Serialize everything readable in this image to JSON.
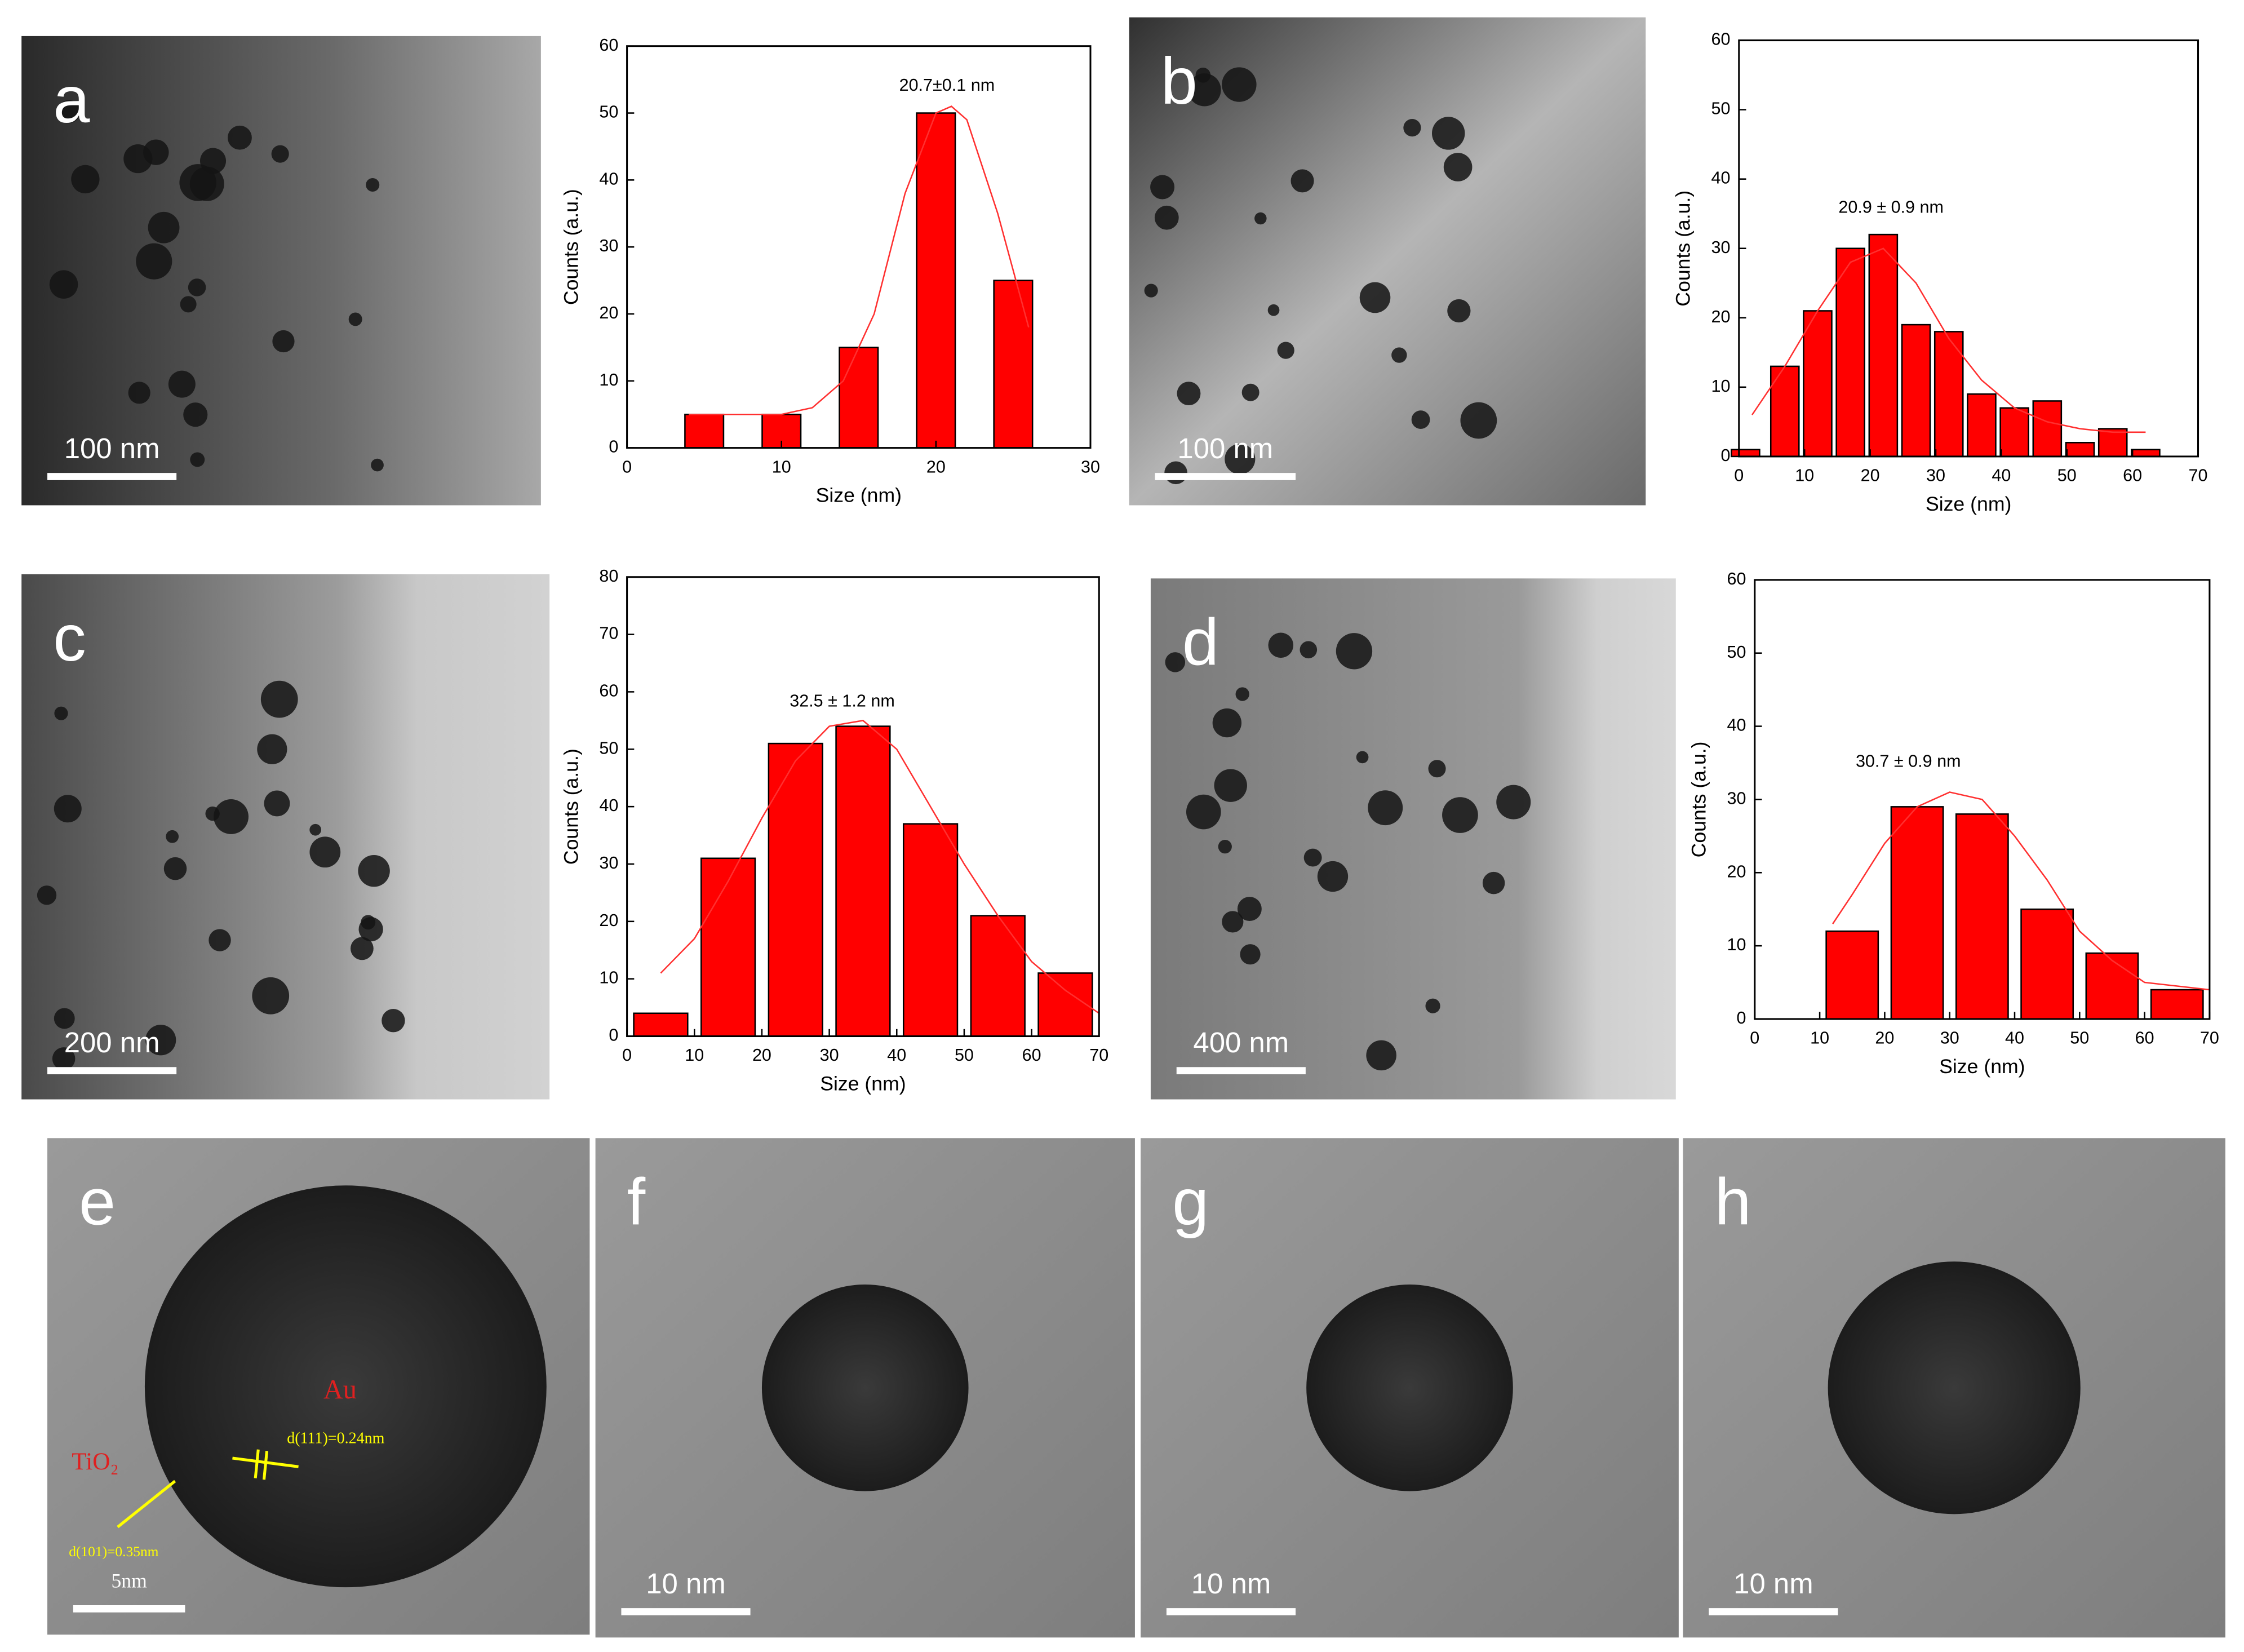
{
  "chart_data": [
    {
      "type": "bar",
      "x": [
        5,
        10,
        15,
        20,
        25
      ],
      "values": [
        5,
        5,
        15,
        50,
        25
      ],
      "color": "#ff0000",
      "xlim": [
        0,
        30
      ],
      "xticks": [
        0,
        10,
        20,
        30
      ],
      "ylim": [
        0,
        60
      ],
      "yticks": [
        0,
        10,
        20,
        30,
        40,
        50,
        60
      ],
      "xlabel": "Size (nm)",
      "ylabel": "Counts (a.u.)",
      "annotation": "20.7±0.1 nm",
      "fit": {
        "x": [
          4,
          10,
          12,
          14,
          16,
          18,
          20,
          21,
          22,
          24,
          26
        ],
        "values": [
          5,
          5,
          6,
          10,
          20,
          38,
          50,
          51,
          49,
          35,
          18
        ]
      }
    },
    {
      "type": "bar",
      "x": [
        1,
        7,
        12,
        17,
        22,
        27,
        32,
        37,
        42,
        47,
        52,
        57,
        62
      ],
      "values": [
        1,
        13,
        21,
        30,
        32,
        19,
        18,
        9,
        7,
        8,
        2,
        4,
        1
      ],
      "color": "#ff0000",
      "xlim": [
        0,
        70
      ],
      "xticks": [
        0,
        10,
        20,
        30,
        40,
        50,
        60,
        70
      ],
      "ylim": [
        0,
        60
      ],
      "yticks": [
        0,
        10,
        20,
        30,
        40,
        50,
        60
      ],
      "xlabel": "Size (nm)",
      "ylabel": "Counts (a.u.)",
      "annotation": "20.9 ± 0.9 nm",
      "fit": {
        "x": [
          2,
          7,
          12,
          17,
          22,
          27,
          32,
          37,
          42,
          47,
          52,
          57,
          62
        ],
        "values": [
          6,
          13,
          21,
          28,
          30,
          25,
          17,
          11,
          7,
          5,
          4,
          3.5,
          3.5
        ]
      }
    },
    {
      "type": "bar",
      "x": [
        5,
        15,
        25,
        35,
        45,
        55,
        65
      ],
      "values": [
        4,
        31,
        51,
        54,
        37,
        21,
        11
      ],
      "color": "#ff0000",
      "xlim": [
        0,
        70
      ],
      "xticks": [
        0,
        10,
        20,
        30,
        40,
        50,
        60,
        70
      ],
      "ylim": [
        0,
        80
      ],
      "yticks": [
        0,
        10,
        20,
        30,
        40,
        50,
        60,
        70,
        80
      ],
      "xlabel": "Size (nm)",
      "ylabel": "Counts (a.u.)",
      "annotation": "32.5 ± 1.2 nm",
      "fit": {
        "x": [
          5,
          10,
          15,
          20,
          25,
          30,
          35,
          40,
          45,
          50,
          55,
          60,
          65,
          70
        ],
        "values": [
          11,
          17,
          27,
          38,
          48,
          54,
          55,
          50,
          40,
          30,
          21,
          13,
          8,
          4
        ]
      }
    },
    {
      "type": "bar",
      "x": [
        15,
        25,
        35,
        45,
        55,
        65
      ],
      "values": [
        12,
        29,
        28,
        15,
        9,
        4
      ],
      "color": "#ff0000",
      "xlim": [
        0,
        70
      ],
      "xticks": [
        0,
        10,
        20,
        30,
        40,
        50,
        60,
        70
      ],
      "ylim": [
        0,
        60
      ],
      "yticks": [
        0,
        10,
        20,
        30,
        40,
        50,
        60
      ],
      "xlabel": "Size (nm)",
      "ylabel": "Counts (a.u.)",
      "annotation": "30.7 ± 0.9 nm",
      "fit": {
        "x": [
          12,
          15,
          20,
          25,
          30,
          35,
          40,
          45,
          50,
          55,
          60,
          65,
          70
        ],
        "values": [
          13,
          17,
          24,
          29,
          31,
          30,
          25,
          19,
          12,
          8,
          5,
          4.5,
          4
        ]
      }
    }
  ],
  "panels": [
    {
      "label": "a",
      "scale_bar": "100 nm"
    },
    {
      "label": "b",
      "scale_bar": "100 nm"
    },
    {
      "label": "c",
      "scale_bar": "200 nm"
    },
    {
      "label": "d",
      "scale_bar": "400 nm"
    },
    {
      "label": "e",
      "scale_bar": "5nm",
      "annotations": [
        "Au",
        "TiO₂",
        "d(111)=0.24nm",
        "d(101)=0.35nm"
      ]
    },
    {
      "label": "f",
      "scale_bar": "10 nm"
    },
    {
      "label": "g",
      "scale_bar": "10 nm"
    },
    {
      "label": "h",
      "scale_bar": "10 nm"
    }
  ]
}
